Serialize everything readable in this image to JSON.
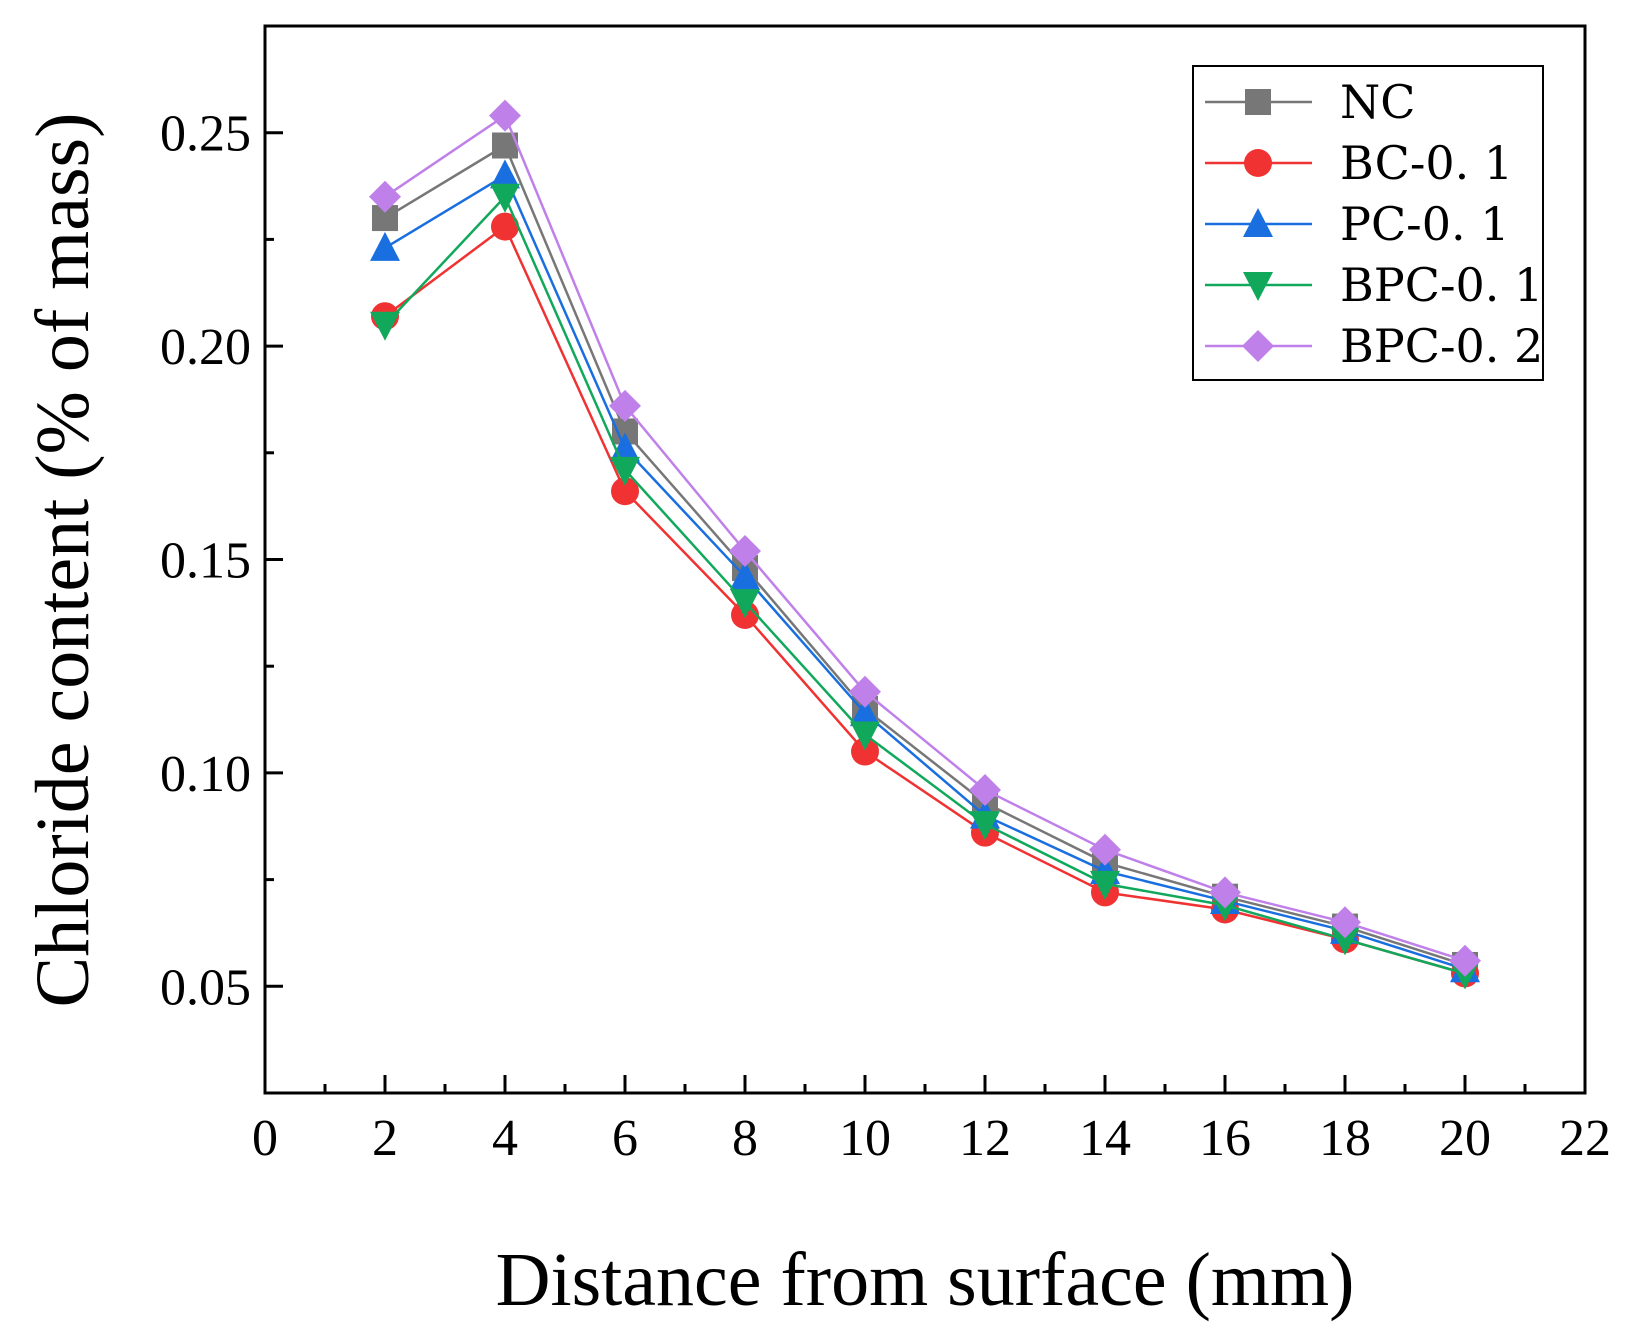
{
  "chart_data": {
    "type": "line",
    "title": "",
    "xlabel": "Distance from surface (mm)",
    "ylabel": "Chloride content (% of mass)",
    "xlim": [
      0,
      22
    ],
    "ylim": [
      0.025,
      0.275
    ],
    "x_ticks": [
      0,
      2,
      4,
      6,
      8,
      10,
      12,
      14,
      16,
      18,
      20,
      22
    ],
    "x_tick_labels": [
      "0",
      "2",
      "4",
      "6",
      "8",
      "10",
      "12",
      "14",
      "16",
      "18",
      "20",
      "22"
    ],
    "y_ticks": [
      0.05,
      0.1,
      0.15,
      0.2,
      0.25
    ],
    "y_tick_labels": [
      "0.05",
      "0.10",
      "0.15",
      "0.20",
      "0.25"
    ],
    "grid": false,
    "legend_position": "top-right",
    "x": [
      2,
      4,
      6,
      8,
      10,
      12,
      14,
      16,
      18,
      20
    ],
    "series": [
      {
        "name": "NC",
        "color": "#777777",
        "marker": "square",
        "values": [
          0.23,
          0.247,
          0.18,
          0.148,
          0.115,
          0.093,
          0.079,
          0.071,
          0.064,
          0.055
        ]
      },
      {
        "name": "BC-0. 1",
        "color": "#f03232",
        "marker": "circle",
        "values": [
          0.207,
          0.228,
          0.166,
          0.137,
          0.105,
          0.086,
          0.072,
          0.068,
          0.061,
          0.053
        ]
      },
      {
        "name": "PC-0. 1",
        "color": "#1a6fe0",
        "marker": "triangle-up",
        "values": [
          0.223,
          0.24,
          0.176,
          0.146,
          0.114,
          0.09,
          0.077,
          0.07,
          0.063,
          0.054
        ]
      },
      {
        "name": "BPC-0. 1",
        "color": "#12a85c",
        "marker": "triangle-down",
        "values": [
          0.205,
          0.235,
          0.171,
          0.14,
          0.109,
          0.088,
          0.074,
          0.069,
          0.061,
          0.053
        ]
      },
      {
        "name": "BPC-0. 2",
        "color": "#c080ea",
        "marker": "diamond",
        "values": [
          0.235,
          0.254,
          0.186,
          0.152,
          0.119,
          0.096,
          0.082,
          0.072,
          0.065,
          0.056
        ]
      }
    ]
  }
}
